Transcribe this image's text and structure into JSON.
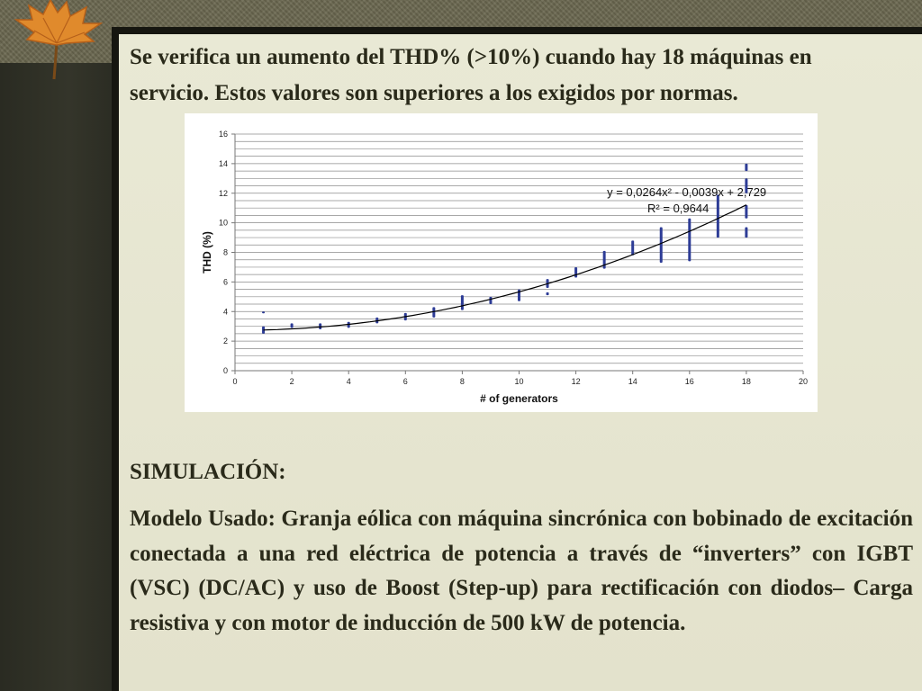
{
  "slide": {
    "intro_line1": "Se verifica un aumento del THD% (>10%) cuando hay 18 máquinas en",
    "intro_line2": "servicio. Estos valores son superiores a los exigidos por normas.",
    "heading": "SIMULACIÓN:",
    "body": "Modelo Usado: Granja eólica con máquina sincrónica con bobinado de excitación conectada a una red eléctrica de potencia a través de “inverters” con IGBT (VSC) (DC/AC) y uso de Boost (Step-up) para rectificación con diodos– Carga resistiva y con motor de inducción de 500 kW de potencia."
  },
  "colors": {
    "points": "#2d3c96",
    "trend": "#000000",
    "grid": "#8c8c8c",
    "panel": "#e6e5cf"
  },
  "chart_data": {
    "type": "scatter",
    "xlabel": "# of generators",
    "ylabel": "THD (%)",
    "xlim": [
      0,
      20
    ],
    "ylim": [
      0,
      16
    ],
    "xticks": [
      0,
      2,
      4,
      6,
      8,
      10,
      12,
      14,
      16,
      18,
      20
    ],
    "yticks": [
      0,
      2,
      4,
      6,
      8,
      10,
      12,
      14,
      16
    ],
    "grid": "horizontal, every 0.5",
    "trendline": {
      "equation": "y = 0,0264x² - 0,0039x + 2,729",
      "r2": "R² = 0,9644",
      "coefficients": [
        0.0264,
        -0.0039,
        2.729
      ]
    },
    "points": [
      {
        "x": 1,
        "y_range": [
          2.5,
          3.0
        ]
      },
      {
        "x": 1,
        "y_range": [
          3.9,
          4.0
        ]
      },
      {
        "x": 2,
        "y_range": [
          2.9,
          3.2
        ]
      },
      {
        "x": 3,
        "y_range": [
          2.8,
          3.2
        ]
      },
      {
        "x": 4,
        "y_range": [
          2.9,
          3.3
        ]
      },
      {
        "x": 5,
        "y_range": [
          3.2,
          3.6
        ]
      },
      {
        "x": 6,
        "y_range": [
          3.4,
          3.9
        ]
      },
      {
        "x": 7,
        "y_range": [
          3.6,
          4.3
        ]
      },
      {
        "x": 8,
        "y_range": [
          4.1,
          5.1
        ]
      },
      {
        "x": 9,
        "y_range": [
          4.5,
          5.0
        ]
      },
      {
        "x": 10,
        "y_range": [
          4.7,
          5.5
        ]
      },
      {
        "x": 11,
        "y_range": [
          5.1,
          5.3
        ]
      },
      {
        "x": 11,
        "y_range": [
          5.6,
          6.2
        ]
      },
      {
        "x": 12,
        "y_range": [
          6.3,
          7.0
        ]
      },
      {
        "x": 13,
        "y_range": [
          6.9,
          8.1
        ]
      },
      {
        "x": 14,
        "y_range": [
          7.8,
          8.8
        ]
      },
      {
        "x": 15,
        "y_range": [
          7.3,
          9.7
        ]
      },
      {
        "x": 16,
        "y_range": [
          7.4,
          10.3
        ]
      },
      {
        "x": 17,
        "y_range": [
          9.0,
          11.9
        ]
      },
      {
        "x": 18,
        "y_range": [
          9.0,
          9.7
        ]
      },
      {
        "x": 18,
        "y_range": [
          10.3,
          11.2
        ]
      },
      {
        "x": 18,
        "y_range": [
          12.0,
          13.0
        ]
      },
      {
        "x": 18,
        "y_range": [
          13.5,
          14.0
        ]
      }
    ]
  }
}
